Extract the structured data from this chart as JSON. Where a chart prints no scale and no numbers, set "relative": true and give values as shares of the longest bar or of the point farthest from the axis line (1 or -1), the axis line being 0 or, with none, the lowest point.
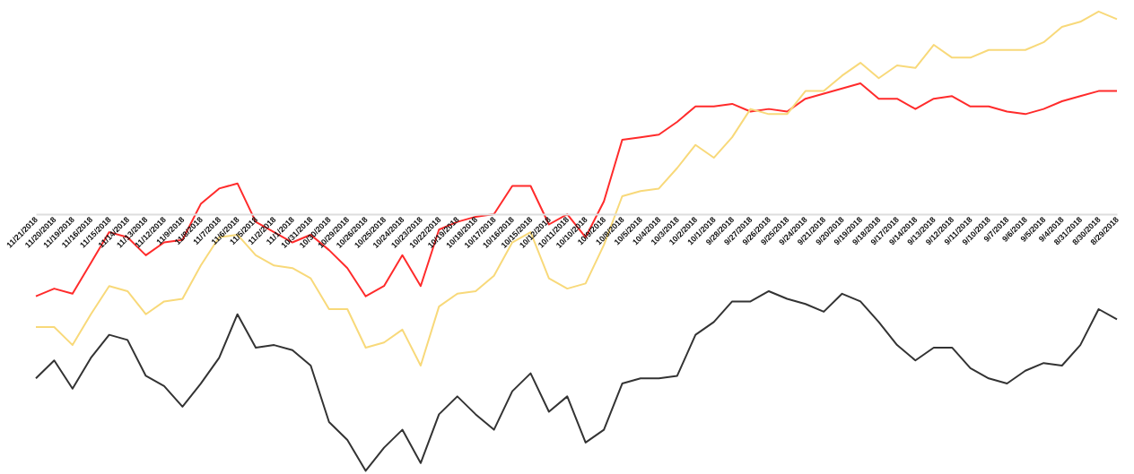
{
  "chart_data": {
    "type": "line",
    "relative": true,
    "categories": [
      "11/21/2018",
      "11/20/2018",
      "11/19/2018",
      "11/16/2018",
      "11/15/2018",
      "11/14/2018",
      "11/13/2018",
      "11/12/2018",
      "11/9/2018",
      "11/8/2018",
      "11/7/2018",
      "11/6/2018",
      "11/5/2018",
      "11/2/2018",
      "11/1/2018",
      "10/31/2018",
      "10/30/2018",
      "10/29/2018",
      "10/26/2018",
      "10/25/2018",
      "10/24/2018",
      "10/23/2018",
      "10/22/2018",
      "10/19/2018",
      "10/18/2018",
      "10/17/2018",
      "10/16/2018",
      "10/15/2018",
      "10/12/2018",
      "10/11/2018",
      "10/10/2018",
      "10/9/2018",
      "10/8/2018",
      "10/5/2018",
      "10/4/2018",
      "10/3/2018",
      "10/2/2018",
      "10/1/2018",
      "9/28/2018",
      "9/27/2018",
      "9/26/2018",
      "9/25/2018",
      "9/24/2018",
      "9/21/2018",
      "9/20/2018",
      "9/19/2018",
      "9/18/2018",
      "9/17/2018",
      "9/14/2018",
      "9/13/2018",
      "9/12/2018",
      "9/11/2018",
      "9/10/2018",
      "9/7/2018",
      "9/6/2018",
      "9/5/2018",
      "9/4/2018",
      "8/31/2018",
      "8/30/2018",
      "8/29/2018"
    ],
    "series": [
      {
        "color": "#ff2b2b",
        "values": [
          -0.32,
          -0.29,
          -0.31,
          -0.19,
          -0.07,
          -0.09,
          -0.16,
          -0.11,
          -0.1,
          0.04,
          0.1,
          0.12,
          -0.03,
          -0.07,
          -0.11,
          -0.08,
          -0.14,
          -0.21,
          -0.32,
          -0.28,
          -0.16,
          -0.28,
          -0.06,
          -0.03,
          -0.01,
          0.0,
          0.11,
          0.11,
          -0.04,
          0.0,
          -0.09,
          0.05,
          0.29,
          0.3,
          0.31,
          0.36,
          0.42,
          0.42,
          0.43,
          0.4,
          0.41,
          0.4,
          0.45,
          0.47,
          0.49,
          0.51,
          0.45,
          0.45,
          0.41,
          0.45,
          0.46,
          0.42,
          0.42,
          0.4,
          0.39,
          0.41,
          0.44,
          0.46,
          0.48,
          0.48
        ]
      },
      {
        "color": "#f8d97a",
        "values": [
          -0.44,
          -0.44,
          -0.51,
          -0.39,
          -0.28,
          -0.3,
          -0.39,
          -0.34,
          -0.33,
          -0.2,
          -0.09,
          -0.08,
          -0.16,
          -0.2,
          -0.21,
          -0.25,
          -0.37,
          -0.37,
          -0.52,
          -0.5,
          -0.45,
          -0.59,
          -0.36,
          -0.31,
          -0.3,
          -0.24,
          -0.11,
          -0.07,
          -0.25,
          -0.29,
          -0.27,
          -0.12,
          0.07,
          0.09,
          0.1,
          0.18,
          0.27,
          0.22,
          0.3,
          0.41,
          0.39,
          0.39,
          0.48,
          0.48,
          0.54,
          0.59,
          0.53,
          0.58,
          0.57,
          0.66,
          0.61,
          0.61,
          0.64,
          0.64,
          0.64,
          0.67,
          0.73,
          0.75,
          0.79,
          0.76
        ]
      },
      {
        "color": "#333333",
        "values": [
          -0.64,
          -0.57,
          -0.68,
          -0.56,
          -0.47,
          -0.49,
          -0.63,
          -0.67,
          -0.75,
          -0.66,
          -0.56,
          -0.39,
          -0.52,
          -0.51,
          -0.53,
          -0.59,
          -0.81,
          -0.88,
          -1,
          -0.91,
          -0.84,
          -0.97,
          -0.78,
          -0.71,
          -0.78,
          -0.84,
          -0.69,
          -0.62,
          -0.77,
          -0.71,
          -0.89,
          -0.84,
          -0.66,
          -0.64,
          -0.64,
          -0.63,
          -0.47,
          -0.42,
          -0.34,
          -0.34,
          -0.3,
          -0.33,
          -0.35,
          -0.38,
          -0.31,
          -0.34,
          -0.42,
          -0.51,
          -0.57,
          -0.52,
          -0.52,
          -0.6,
          -0.64,
          -0.66,
          -0.61,
          -0.58,
          -0.59,
          -0.51,
          -0.37,
          -0.41
        ]
      }
    ]
  }
}
